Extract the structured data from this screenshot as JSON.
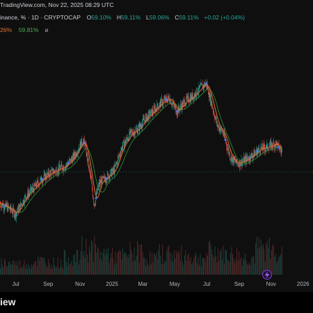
{
  "header": {
    "text": "TradingView.com, Nov 22, 2025 08:29 UTC"
  },
  "legend": {
    "symbol": "inance, % · 1D · CRYPTOCAP",
    "o_label": "O",
    "o_value": "59.10%",
    "h_label": "H",
    "h_value": "59.11%",
    "l_label": "L",
    "l_value": "59.06%",
    "c_label": "C",
    "c_value": "59.11%",
    "change": "+0.02 (+0.04%)",
    "ma1_value": "26%",
    "ma2_value": "59.81%",
    "extra": "ø"
  },
  "footer": {
    "brand": "iew"
  },
  "colors": {
    "background": "#0f0f0f",
    "up": "#26a69a",
    "down": "#ef5350",
    "ma_fast": "#e8732a",
    "ma_slow": "#2e7d32",
    "marker": "#4f7bff",
    "text": "#d1d4dc"
  },
  "chart_data": {
    "type": "line",
    "title": "",
    "xlabel": "",
    "ylabel": "",
    "x_ticks": [
      "Jul",
      "Sep",
      "Nov",
      "2025",
      "Mar",
      "May",
      "Jul",
      "Sep",
      "Nov",
      "2026"
    ],
    "x_start": "2024-06-01",
    "x_end": "2026-01-20",
    "y_axis_visible": false,
    "series": [
      {
        "name": "",
        "values": [
          [
            "2024-06-01",
            53.8
          ],
          [
            "2024-06-20",
            53.2
          ],
          [
            "2024-07-01",
            52.7
          ],
          [
            "2024-07-20",
            54.5
          ],
          [
            "2024-08-05",
            55.4
          ],
          [
            "2024-08-20",
            56.3
          ],
          [
            "2024-09-05",
            56.9
          ],
          [
            "2024-09-20",
            57.3
          ],
          [
            "2024-10-05",
            57.7
          ],
          [
            "2024-10-20",
            58.6
          ],
          [
            "2024-11-05",
            60.2
          ],
          [
            "2024-11-10",
            60.0
          ],
          [
            "2024-11-20",
            56.8
          ],
          [
            "2024-11-28",
            53.7
          ],
          [
            "2024-12-08",
            55.9
          ],
          [
            "2024-12-20",
            56.4
          ],
          [
            "2025-01-05",
            57.2
          ],
          [
            "2025-01-20",
            59.6
          ],
          [
            "2025-02-05",
            61.0
          ],
          [
            "2025-02-20",
            61.5
          ],
          [
            "2025-03-05",
            62.5
          ],
          [
            "2025-03-20",
            63.3
          ],
          [
            "2025-04-05",
            64.2
          ],
          [
            "2025-04-20",
            64.7
          ],
          [
            "2025-05-05",
            63.3
          ],
          [
            "2025-05-20",
            64.3
          ],
          [
            "2025-06-05",
            64.9
          ],
          [
            "2025-06-20",
            65.8
          ],
          [
            "2025-06-30",
            66.2
          ],
          [
            "2025-07-10",
            64.2
          ],
          [
            "2025-07-20",
            62.0
          ],
          [
            "2025-08-01",
            61.1
          ],
          [
            "2025-08-15",
            58.6
          ],
          [
            "2025-08-28",
            57.9
          ],
          [
            "2025-09-10",
            58.2
          ],
          [
            "2025-09-25",
            58.7
          ],
          [
            "2025-10-10",
            59.4
          ],
          [
            "2025-10-25",
            59.6
          ],
          [
            "2025-11-10",
            60.0
          ],
          [
            "2025-11-22",
            59.1
          ]
        ]
      }
    ],
    "volume": [
      [
        "2024-07",
        0.35
      ],
      [
        "2024-08",
        0.45
      ],
      [
        "2024-09",
        0.4
      ],
      [
        "2024-10",
        0.55
      ],
      [
        "2024-11",
        0.85
      ],
      [
        "2024-12",
        0.7
      ],
      [
        "2025-01",
        0.6
      ],
      [
        "2025-02",
        0.75
      ],
      [
        "2025-03",
        0.55
      ],
      [
        "2025-04",
        0.7
      ],
      [
        "2025-05",
        0.65
      ],
      [
        "2025-06",
        0.55
      ],
      [
        "2025-07",
        0.75
      ],
      [
        "2025-08",
        0.65
      ],
      [
        "2025-09",
        0.55
      ],
      [
        "2025-10",
        0.85
      ],
      [
        "2025-11",
        0.8
      ]
    ]
  }
}
